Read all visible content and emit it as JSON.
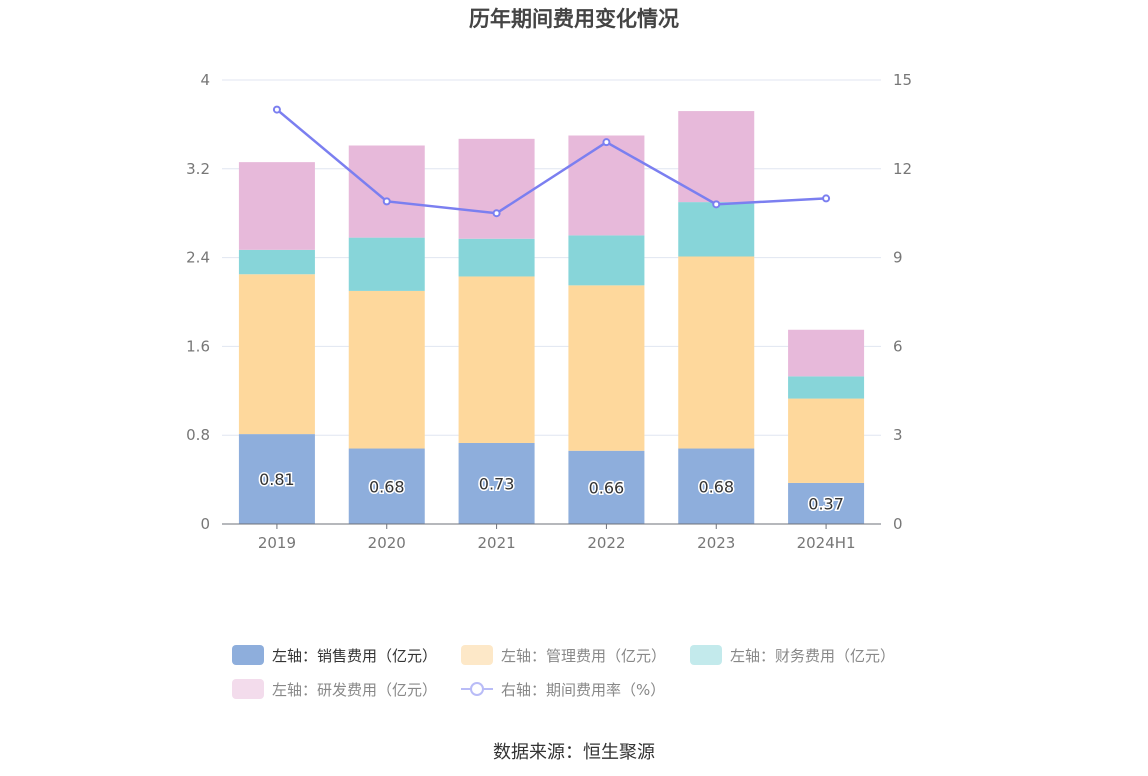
{
  "chart_data": {
    "type": "bar",
    "title": "历年期间费用变化情况",
    "categories": [
      "2019",
      "2020",
      "2021",
      "2022",
      "2023",
      "2024H1"
    ],
    "y_left": {
      "ticks": [
        "0",
        "0.8",
        "1.6",
        "2.4",
        "3.2",
        "4"
      ],
      "min": 0,
      "max": 4
    },
    "y_right": {
      "ticks": [
        "0",
        "3",
        "6",
        "9",
        "12",
        "15"
      ],
      "min": 0,
      "max": 15
    },
    "grid": true,
    "legend_position": "bottom",
    "series": [
      {
        "name": "左轴：销售费用（亿元）",
        "axis": "left",
        "stack": true,
        "color": "#8eaedc",
        "values": [
          0.81,
          0.68,
          0.73,
          0.66,
          0.68,
          0.37
        ],
        "labels": [
          "0.81",
          "0.68",
          "0.73",
          "0.66",
          "0.68",
          "0.37"
        ]
      },
      {
        "name": "左轴：管理费用（亿元）",
        "axis": "left",
        "stack": true,
        "color": "#fed89c",
        "values": [
          1.44,
          1.42,
          1.5,
          1.49,
          1.73,
          0.76
        ]
      },
      {
        "name": "左轴：财务费用（亿元）",
        "axis": "left",
        "stack": true,
        "color": "#87d5d9",
        "values": [
          0.22,
          0.48,
          0.34,
          0.45,
          0.49,
          0.2
        ]
      },
      {
        "name": "左轴：研发费用（亿元）",
        "axis": "left",
        "stack": true,
        "color": "#e7b9da",
        "values": [
          0.79,
          0.83,
          0.9,
          0.9,
          0.82,
          0.42
        ]
      },
      {
        "name": "右轴：期间费用率（%）",
        "axis": "right",
        "type": "line",
        "color": "#7b7ff0",
        "values": [
          14.0,
          10.9,
          10.5,
          12.9,
          10.8,
          11.0
        ]
      }
    ]
  },
  "legend": {
    "items": [
      {
        "label": "左轴：销售费用（亿元）",
        "color": "#8eaedc"
      },
      {
        "label": "左轴：管理费用（亿元）",
        "color": "#fde8c8"
      },
      {
        "label": "左轴：财务费用（亿元）",
        "color": "#c3eaec"
      },
      {
        "label": "左轴：研发费用（亿元）",
        "color": "#f3dcec"
      },
      {
        "label": "右轴：期间费用率（%）",
        "color": "#b9bcf7"
      }
    ]
  },
  "source": "数据来源：恒生聚源"
}
